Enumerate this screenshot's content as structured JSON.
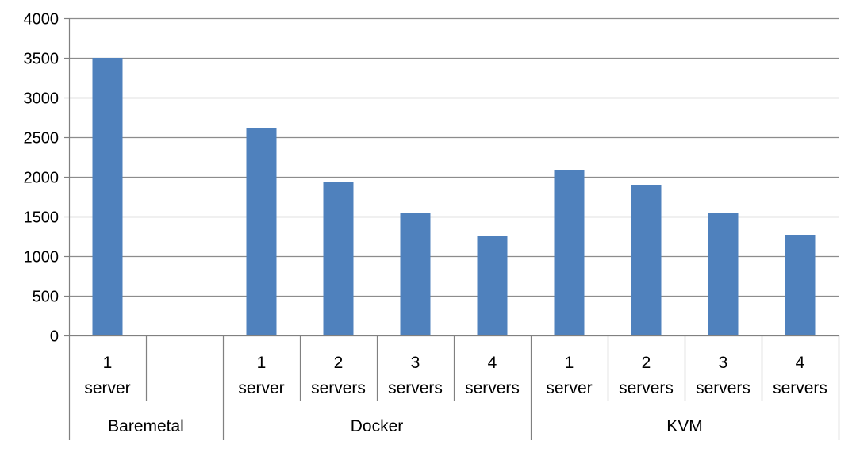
{
  "chart_data": {
    "type": "bar",
    "title": "",
    "xlabel": "",
    "ylabel": "",
    "ylim": [
      0,
      4000
    ],
    "yticks": [
      "0",
      "500",
      "1000",
      "1500",
      "2000",
      "2500",
      "3000",
      "3500",
      "4000"
    ],
    "grid": true,
    "legend": "none",
    "bar_color": "#4f81bd",
    "categories": [
      {
        "line1": "1",
        "line2": "server",
        "group": "Baremetal"
      },
      {
        "line1": "",
        "line2": "",
        "group": "Baremetal"
      },
      {
        "line1": "1",
        "line2": "server",
        "group": "Docker"
      },
      {
        "line1": "2",
        "line2": "servers",
        "group": "Docker"
      },
      {
        "line1": "3",
        "line2": "servers",
        "group": "Docker"
      },
      {
        "line1": "4",
        "line2": "servers",
        "group": "Docker"
      },
      {
        "line1": "1",
        "line2": "server",
        "group": "KVM"
      },
      {
        "line1": "2",
        "line2": "servers",
        "group": "KVM"
      },
      {
        "line1": "3",
        "line2": "servers",
        "group": "KVM"
      },
      {
        "line1": "4",
        "line2": "servers",
        "group": "KVM"
      }
    ],
    "groups": [
      "Baremetal",
      "Docker",
      "KVM"
    ],
    "values": [
      3500,
      null,
      2610,
      1940,
      1540,
      1260,
      2090,
      1900,
      1550,
      1270
    ]
  }
}
